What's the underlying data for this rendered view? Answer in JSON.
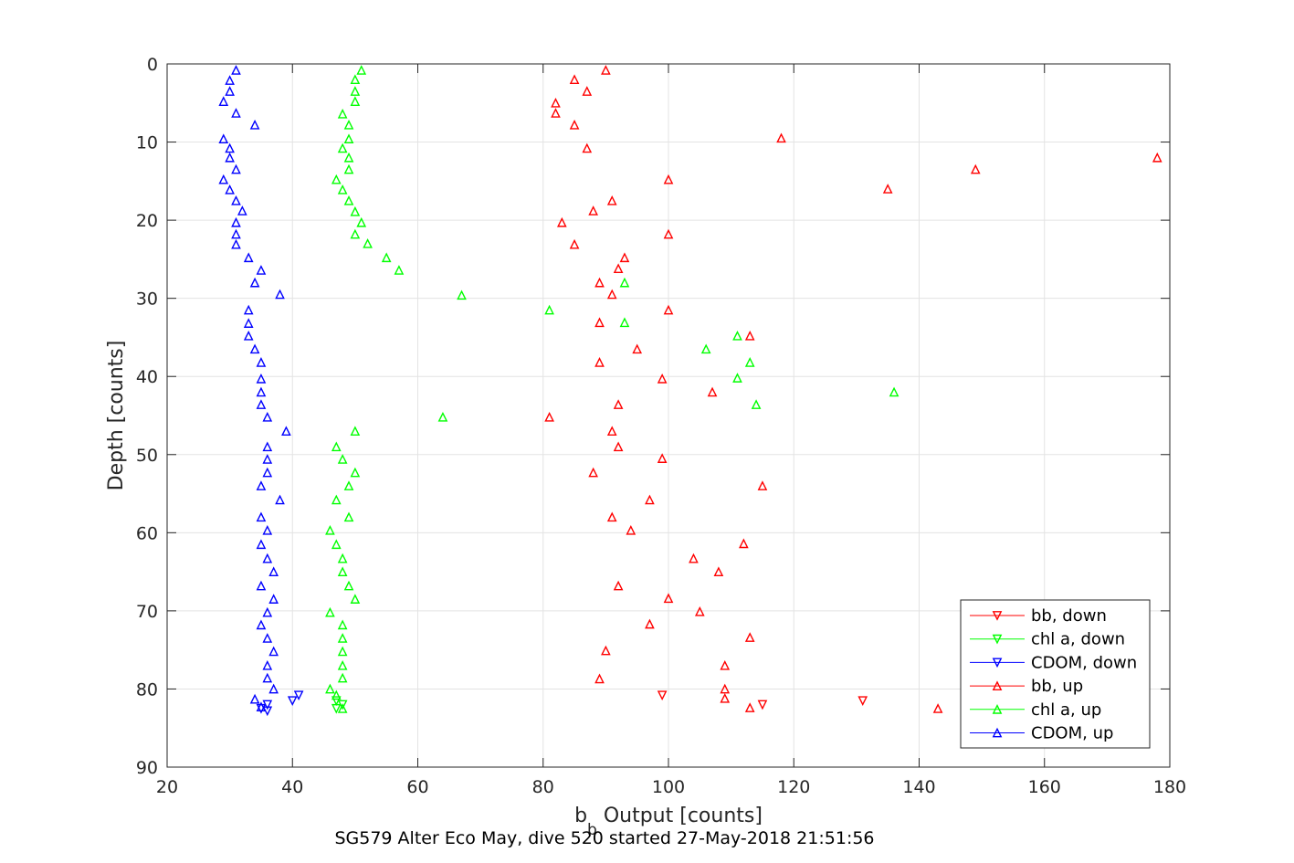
{
  "chart_data": {
    "type": "scatter",
    "xlabel_main": "b",
    "xlabel_sub": "b",
    "xlabel_rest": " Output [counts]",
    "ylabel": "Depth [counts]",
    "caption": "SG579 Alter Eco May, dive 520 started 27-May-2018 21:51:56",
    "xlim": [
      20,
      180
    ],
    "ylim": [
      0,
      90
    ],
    "y_reversed": true,
    "grid": true,
    "legend_position": "bottom-right",
    "xticks": [
      20,
      40,
      60,
      80,
      100,
      120,
      140,
      160,
      180
    ],
    "yticks": [
      0,
      10,
      20,
      30,
      40,
      50,
      60,
      70,
      80,
      90
    ],
    "series": [
      {
        "name": "bb, down",
        "color": "#ff0000",
        "marker": "triangle-down",
        "points": [
          [
            99,
            80.8
          ],
          [
            115,
            82
          ],
          [
            131,
            81.5
          ]
        ]
      },
      {
        "name": "chl a, down",
        "color": "#00ff00",
        "marker": "triangle-down",
        "points": [
          [
            47,
            81.5
          ],
          [
            48,
            82
          ],
          [
            47,
            82.5
          ]
        ]
      },
      {
        "name": "CDOM, down",
        "color": "#0000ff",
        "marker": "triangle-down",
        "points": [
          [
            41,
            80.8
          ],
          [
            40,
            81.5
          ],
          [
            36,
            82
          ],
          [
            35,
            82.5
          ],
          [
            36,
            82.8
          ]
        ]
      },
      {
        "name": "bb, up",
        "color": "#ff0000",
        "marker": "triangle-up",
        "points": [
          [
            90,
            0.8
          ],
          [
            85,
            2
          ],
          [
            87,
            3.5
          ],
          [
            82,
            5
          ],
          [
            82,
            6.3
          ],
          [
            85,
            7.8
          ],
          [
            118,
            9.5
          ],
          [
            87,
            10.8
          ],
          [
            178,
            12
          ],
          [
            149,
            13.5
          ],
          [
            100,
            14.8
          ],
          [
            135,
            16
          ],
          [
            91,
            17.5
          ],
          [
            88,
            18.8
          ],
          [
            83,
            20.3
          ],
          [
            100,
            21.8
          ],
          [
            85,
            23.1
          ],
          [
            93,
            24.8
          ],
          [
            92,
            26.2
          ],
          [
            89,
            28
          ],
          [
            91,
            29.5
          ],
          [
            100,
            31.5
          ],
          [
            89,
            33.1
          ],
          [
            113,
            34.8
          ],
          [
            95,
            36.5
          ],
          [
            89,
            38.2
          ],
          [
            99,
            40.3
          ],
          [
            107,
            42
          ],
          [
            92,
            43.6
          ],
          [
            81,
            45.2
          ],
          [
            91,
            47
          ],
          [
            92,
            49
          ],
          [
            99,
            50.5
          ],
          [
            88,
            52.3
          ],
          [
            115,
            54
          ],
          [
            97,
            55.8
          ],
          [
            91,
            58
          ],
          [
            94,
            59.7
          ],
          [
            112,
            61.4
          ],
          [
            104,
            63.3
          ],
          [
            108,
            65
          ],
          [
            92,
            66.8
          ],
          [
            100,
            68.4
          ],
          [
            105,
            70.1
          ],
          [
            97,
            71.7
          ],
          [
            113,
            73.4
          ],
          [
            90,
            75.1
          ],
          [
            109,
            77
          ],
          [
            89,
            78.7
          ],
          [
            109,
            80
          ],
          [
            109,
            81.2
          ],
          [
            113,
            82.4
          ],
          [
            143,
            82.5
          ]
        ]
      },
      {
        "name": "chl a, up",
        "color": "#00ff00",
        "marker": "triangle-up",
        "points": [
          [
            51,
            0.8
          ],
          [
            50,
            2
          ],
          [
            50,
            3.5
          ],
          [
            50,
            4.8
          ],
          [
            48,
            6.4
          ],
          [
            49,
            7.8
          ],
          [
            49,
            9.6
          ],
          [
            48,
            10.8
          ],
          [
            49,
            12
          ],
          [
            49,
            13.5
          ],
          [
            47,
            14.8
          ],
          [
            48,
            16.1
          ],
          [
            49,
            17.5
          ],
          [
            50,
            18.9
          ],
          [
            51,
            20.3
          ],
          [
            50,
            21.8
          ],
          [
            52,
            23
          ],
          [
            55,
            24.8
          ],
          [
            57,
            26.4
          ],
          [
            67,
            29.6
          ],
          [
            81,
            31.5
          ],
          [
            93,
            28
          ],
          [
            93,
            33.1
          ],
          [
            111,
            34.8
          ],
          [
            106,
            36.5
          ],
          [
            113,
            38.2
          ],
          [
            111,
            40.2
          ],
          [
            136,
            42
          ],
          [
            114,
            43.6
          ],
          [
            64,
            45.2
          ],
          [
            50,
            47
          ],
          [
            47,
            49
          ],
          [
            48,
            50.6
          ],
          [
            50,
            52.3
          ],
          [
            49,
            54
          ],
          [
            47,
            55.8
          ],
          [
            49,
            58
          ],
          [
            46,
            59.7
          ],
          [
            47,
            61.5
          ],
          [
            48,
            63.3
          ],
          [
            48,
            65
          ],
          [
            49,
            66.8
          ],
          [
            50,
            68.5
          ],
          [
            46,
            70.2
          ],
          [
            48,
            71.8
          ],
          [
            48,
            73.5
          ],
          [
            48,
            75.2
          ],
          [
            48,
            77
          ],
          [
            48,
            78.6
          ],
          [
            46,
            80
          ],
          [
            47,
            80.8
          ],
          [
            48,
            82.5
          ]
        ]
      },
      {
        "name": "CDOM, up",
        "color": "#0000ff",
        "marker": "triangle-up",
        "points": [
          [
            31,
            0.8
          ],
          [
            30,
            2.1
          ],
          [
            30,
            3.5
          ],
          [
            29,
            4.8
          ],
          [
            31,
            6.3
          ],
          [
            34,
            7.8
          ],
          [
            29,
            9.6
          ],
          [
            30,
            10.8
          ],
          [
            30,
            12
          ],
          [
            31,
            13.5
          ],
          [
            29,
            14.8
          ],
          [
            30,
            16.1
          ],
          [
            31,
            17.5
          ],
          [
            32,
            18.8
          ],
          [
            31,
            20.3
          ],
          [
            31,
            21.8
          ],
          [
            31,
            23.1
          ],
          [
            33,
            24.8
          ],
          [
            35,
            26.4
          ],
          [
            34,
            28
          ],
          [
            38,
            29.5
          ],
          [
            33,
            31.5
          ],
          [
            33,
            33.2
          ],
          [
            33,
            34.8
          ],
          [
            34,
            36.5
          ],
          [
            35,
            38.2
          ],
          [
            35,
            40.3
          ],
          [
            35,
            42
          ],
          [
            35,
            43.6
          ],
          [
            36,
            45.2
          ],
          [
            39,
            47
          ],
          [
            36,
            49
          ],
          [
            36,
            50.6
          ],
          [
            36,
            52.3
          ],
          [
            35,
            54
          ],
          [
            38,
            55.8
          ],
          [
            35,
            58
          ],
          [
            36,
            59.7
          ],
          [
            35,
            61.5
          ],
          [
            36,
            63.3
          ],
          [
            37,
            65
          ],
          [
            35,
            66.8
          ],
          [
            37,
            68.5
          ],
          [
            36,
            70.2
          ],
          [
            35,
            71.8
          ],
          [
            36,
            73.5
          ],
          [
            37,
            75.2
          ],
          [
            36,
            77
          ],
          [
            36,
            78.6
          ],
          [
            37,
            80
          ],
          [
            34,
            81.3
          ],
          [
            35,
            82.3
          ]
        ]
      }
    ]
  }
}
